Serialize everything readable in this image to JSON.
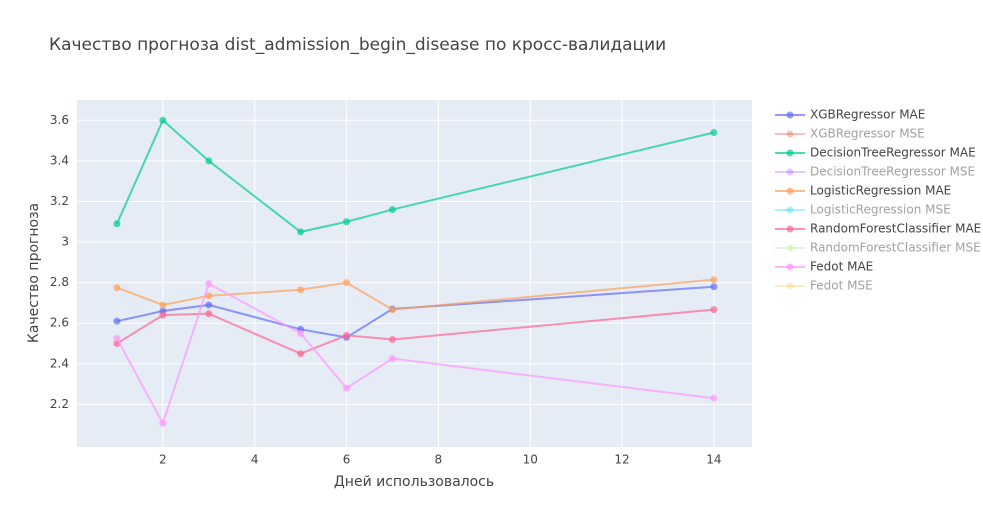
{
  "chart_data": {
    "type": "line",
    "title": "Качество прогноза dist_admission_begin_disease по кросс-валидации",
    "x_label": "Дней использовалось",
    "y_label": "Качество прогноза",
    "x": [
      1,
      2,
      3,
      5,
      6,
      7,
      14
    ],
    "xlim": [
      0.13,
      14.83
    ],
    "xticks": [
      2,
      4,
      6,
      8,
      10,
      12,
      14
    ],
    "ylim": [
      1.99,
      3.7
    ],
    "yticks": [
      2.2,
      2.4,
      2.6,
      2.8,
      3,
      3.2,
      3.4,
      3.6
    ],
    "grid": true,
    "legend": "right",
    "series": [
      {
        "name": "XGBRegressor MAE",
        "color": "#636efa",
        "values": [
          2.61,
          2.66,
          2.69,
          2.57,
          2.53,
          2.67,
          2.78
        ]
      },
      {
        "name": "XGBRegressor MSE",
        "color": "#EF553B",
        "visible": false
      },
      {
        "name": "DecisionTreeRegressor MAE",
        "color": "#00cc96",
        "values": [
          3.09,
          3.6,
          3.4,
          3.05,
          3.1,
          3.16,
          3.54
        ]
      },
      {
        "name": "DecisionTreeRegressor MSE",
        "color": "#ab63fa",
        "visible": false
      },
      {
        "name": "LogisticRegression MAE",
        "color": "#FFA15A",
        "values": [
          2.775,
          2.69,
          2.735,
          2.765,
          2.8,
          2.667,
          2.815
        ]
      },
      {
        "name": "LogisticRegression MSE",
        "color": "#19d3f3",
        "visible": false
      },
      {
        "name": "RandomForestClassifier MAE",
        "color": "#FF6692",
        "values": [
          2.5,
          2.64,
          2.647,
          2.45,
          2.54,
          2.52,
          2.667
        ]
      },
      {
        "name": "RandomForestClassifier MSE",
        "color": "#B6E880",
        "visible": false
      },
      {
        "name": "Fedot MAE",
        "color": "#FF97FF",
        "values": [
          2.525,
          2.107,
          2.795,
          2.55,
          2.28,
          2.426,
          2.23
        ]
      },
      {
        "name": "Fedot MSE",
        "color": "#FECB52",
        "visible": false
      }
    ]
  }
}
